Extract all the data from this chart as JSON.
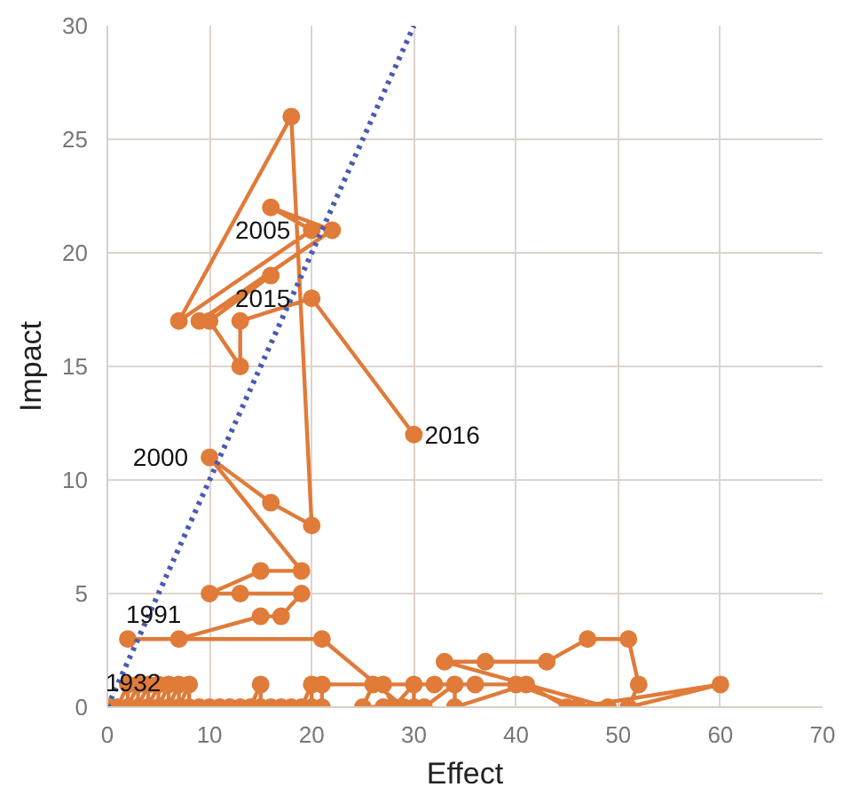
{
  "chart_data": {
    "type": "line",
    "xlabel": "Effect",
    "ylabel": "Impact",
    "xlim": [
      0,
      70
    ],
    "xticks": [
      0,
      10,
      20,
      30,
      40,
      50,
      60,
      70
    ],
    "ylim": [
      0,
      30
    ],
    "yticks": [
      0,
      5,
      10,
      15,
      20,
      25,
      30
    ],
    "grid": true,
    "series": [
      {
        "color": "#e07b39",
        "marker": "circle",
        "line_style": "solid",
        "x": [
          0,
          1,
          2,
          2,
          3,
          3,
          4,
          4,
          5,
          5,
          6,
          6,
          7,
          7,
          8,
          8,
          9,
          10,
          11,
          12,
          13,
          14,
          15,
          15,
          16,
          17,
          18,
          19,
          20,
          20,
          21,
          21,
          27,
          28,
          30,
          30,
          31,
          34,
          34,
          41,
          45,
          49,
          33,
          37,
          43,
          47,
          51,
          52,
          51,
          60,
          46,
          40,
          36,
          32,
          26,
          25,
          27,
          29,
          21,
          2,
          7,
          15,
          17,
          19,
          13,
          10,
          15,
          19,
          10,
          16,
          20,
          18,
          7,
          20,
          16,
          22,
          9,
          16,
          10,
          13,
          13,
          20,
          30
        ],
        "values": [
          0,
          0,
          1,
          0,
          1,
          0,
          1,
          0,
          1,
          0,
          1,
          0,
          1,
          0,
          1,
          0,
          0,
          0,
          0,
          0,
          0,
          0,
          1,
          0,
          0,
          0,
          0,
          0,
          1,
          0,
          0,
          1,
          1,
          0,
          1,
          0,
          0,
          1,
          0,
          1,
          0,
          0,
          2,
          2,
          2,
          3,
          3,
          1,
          0,
          1,
          0,
          1,
          1,
          1,
          1,
          0,
          0,
          0,
          3,
          3,
          3,
          4,
          4,
          5,
          5,
          5,
          6,
          6,
          11,
          9,
          8,
          26,
          17,
          21,
          22,
          21,
          17,
          19,
          17,
          15,
          17,
          18,
          12
        ]
      },
      {
        "type": "line",
        "color": "#4a5ab0",
        "marker": "none",
        "line_style": "dotted",
        "x": [
          0,
          30
        ],
        "values": [
          0,
          30
        ]
      }
    ],
    "annotations": [
      {
        "text": "1932",
        "x": 0,
        "y": 0
      },
      {
        "text": "1991",
        "x": 2,
        "y": 3
      },
      {
        "text": "2000",
        "x": 10,
        "y": 11
      },
      {
        "text": "2005",
        "x": 20,
        "y": 21
      },
      {
        "text": "2015",
        "x": 20,
        "y": 18
      },
      {
        "text": "2016",
        "x": 30,
        "y": 12
      }
    ]
  }
}
